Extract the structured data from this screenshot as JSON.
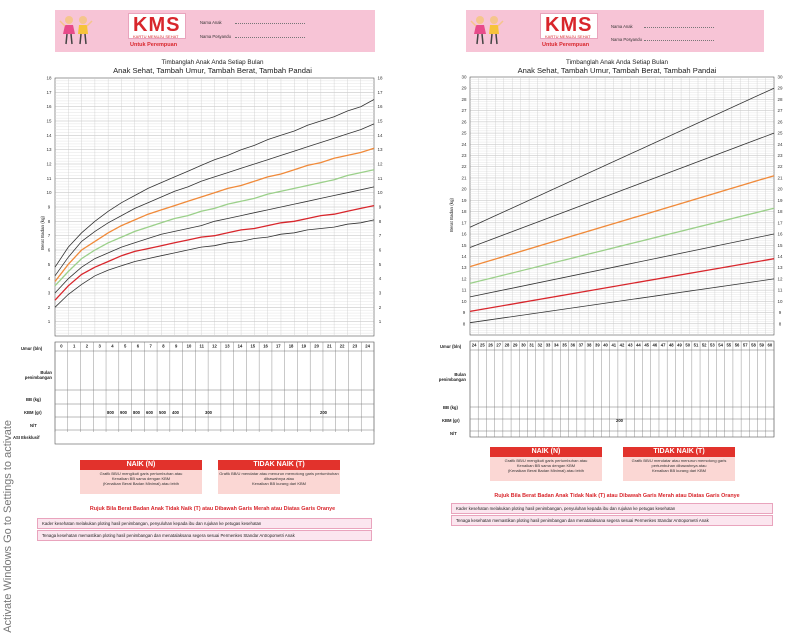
{
  "left_card": {
    "header": {
      "logo": "KMS",
      "logo_sub": "KARTU MENUJU SEHAT",
      "untuk": "Untuk Perempuan",
      "nama_anak": "Nama Anak",
      "nama_posyandu": "Nama Posyandu"
    },
    "title1": "Timbanglah Anak Anda Setiap Bulan",
    "title2": "Anak Sehat, Tambah Umur, Tambah Berat, Tambah Pandai",
    "ylabel": "Berat Badan (kg)",
    "table": {
      "umur": "Umur (bln)",
      "bulan": "Bulan penimbangan",
      "bb": "BB (kg)",
      "kbm": "KBM (gr)",
      "nt": "N/T",
      "asi": "ASI Eksklusif",
      "kbm_values": [
        "800",
        "900",
        "800",
        "600",
        "500",
        "400",
        "300",
        "200"
      ]
    },
    "naik_title": "NAIK (N)",
    "naik_text1": "Grafik BB/U mengikuti garis pertumbuhan atau",
    "naik_text2": "Kenaikan BB sama dengan KBM",
    "naik_text3": "(Kenaikan Berat Badan Minimal) atau lebih",
    "tidak_title": "TIDAK NAIK (T)",
    "tidak_text1": "Grafik BB/U mendatar atau menurun memotong garis pertumbuhan dibawahnya atau",
    "tidak_text2": "Kenaikan BB kurang dari KBM",
    "rujuk": "Rujuk Bila Berat Badan Anak Tidak Naik (T) atau Dibawah Garis Merah atau Diatas Garis Oranye",
    "note1": "Kader kesehatan melakukan ploting hasil penimbangan, penyuluhan kepada ibu dan rujukan ke petugas kesehatan",
    "note2": "Tenaga kesehatan memastikan ploting hasil penimbangan dan menatalaksana segera sesuai Permenkes Standar Antropometri Anak"
  },
  "right_card": {
    "header": {
      "logo": "KMS",
      "logo_sub": "KARTU MENUJU SEHAT",
      "untuk": "Untuk Perempuan",
      "nama_anak": "Nama Anak",
      "nama_posyandu": "Nama Posyandu"
    },
    "title1": "Timbanglah Anak Anda Setiap Bulan",
    "title2": "Anak Sehat, Tambah Umur, Tambah Berat, Tambah Pandai",
    "ylabel": "Berat Badan (kg)",
    "table": {
      "umur": "Umur (bln)",
      "bulan": "Bulan penimbangan",
      "bb": "BB (kg)",
      "kbm": "KBM (gr)",
      "nt": "N/T",
      "kbm_value": "200"
    },
    "naik_title": "NAIK (N)",
    "naik_text1": "Grafik BB/U mengikuti garis pertumbuhan atau",
    "naik_text2": "Kenaikan BB sama dengan KBM",
    "naik_text3": "(Kenaikan Berat Badan Minimal) atau lebih",
    "tidak_title": "TIDAK NAIK (T)",
    "tidak_text1": "Grafik BB/U mendatar atau menurun memotong garis pertumbuhan dibawahnya atau",
    "tidak_text2": "Kenaikan BB kurang dari KBM",
    "rujuk": "Rujuk Bila Berat Badan Anak Tidak Naik (T) atau Dibawah Garis Merah atau Diatas Garis Oranye",
    "note1": "Kader kesehatan melakukan ploting hasil penimbangan, penyuluhan kepada ibu dan rujukan ke petugas kesehatan",
    "note2": "Tenaga kesehatan memastikan ploting hasil penimbangan dan menatalaksana segera sesuai Permenkes Standar Antropometri Anak"
  },
  "watermark": {
    "line1": "Activate Windows",
    "line2": "Go to Settings to activate"
  },
  "colors": {
    "pink": "#f7c4d6",
    "red": "#d8262c",
    "orange": "#f08a3a",
    "green": "#9bd08a"
  },
  "chart_data": [
    {
      "type": "line",
      "title": "Timbanglah Anak Anda Setiap Bulan",
      "ylabel": "Berat Badan (kg)",
      "xlabel": "Umur (bln)",
      "x": [
        0,
        1,
        2,
        3,
        4,
        5,
        6,
        7,
        8,
        9,
        10,
        11,
        12,
        13,
        14,
        15,
        16,
        17,
        18,
        19,
        20,
        21,
        22,
        23,
        24
      ],
      "xlim": [
        0,
        24
      ],
      "ylim": [
        0,
        18
      ],
      "yticks": [
        1,
        2,
        3,
        4,
        5,
        6,
        7,
        8,
        9,
        10,
        11,
        12,
        13,
        14,
        15,
        16,
        17,
        18
      ],
      "series": [
        {
          "color": "#333333",
          "values": [
            4.8,
            6.2,
            7.2,
            8.0,
            8.7,
            9.3,
            9.8,
            10.3,
            10.7,
            11.1,
            11.5,
            11.9,
            12.3,
            12.6,
            13.0,
            13.3,
            13.7,
            14.0,
            14.3,
            14.7,
            15.0,
            15.3,
            15.7,
            16.0,
            16.5
          ]
        },
        {
          "color": "#333333",
          "values": [
            4.2,
            5.5,
            6.6,
            7.3,
            7.9,
            8.4,
            8.9,
            9.3,
            9.7,
            10.1,
            10.4,
            10.8,
            11.1,
            11.4,
            11.7,
            12.0,
            12.3,
            12.6,
            12.9,
            13.2,
            13.5,
            13.8,
            14.1,
            14.4,
            14.8
          ]
        },
        {
          "color": "#f08a3a",
          "values": [
            3.8,
            5.0,
            6.0,
            6.6,
            7.2,
            7.7,
            8.1,
            8.5,
            8.8,
            9.1,
            9.4,
            9.7,
            10.0,
            10.3,
            10.5,
            10.8,
            11.1,
            11.3,
            11.6,
            11.9,
            12.1,
            12.4,
            12.6,
            12.8,
            13.1
          ]
        },
        {
          "color": "#9bd08a",
          "values": [
            3.5,
            4.5,
            5.4,
            6.0,
            6.5,
            6.9,
            7.3,
            7.6,
            7.9,
            8.2,
            8.4,
            8.7,
            8.9,
            9.2,
            9.4,
            9.6,
            9.9,
            10.1,
            10.3,
            10.5,
            10.7,
            10.9,
            11.2,
            11.4,
            11.6
          ]
        },
        {
          "color": "#333333",
          "values": [
            3.0,
            4.0,
            4.8,
            5.4,
            5.8,
            6.2,
            6.5,
            6.8,
            7.1,
            7.3,
            7.5,
            7.7,
            8.0,
            8.2,
            8.4,
            8.6,
            8.8,
            9.0,
            9.2,
            9.4,
            9.6,
            9.8,
            10.0,
            10.2,
            10.4
          ]
        },
        {
          "color": "#d8262c",
          "values": [
            2.5,
            3.5,
            4.3,
            4.8,
            5.2,
            5.6,
            5.9,
            6.1,
            6.3,
            6.5,
            6.7,
            6.9,
            7.0,
            7.2,
            7.4,
            7.5,
            7.7,
            7.9,
            8.0,
            8.2,
            8.4,
            8.5,
            8.7,
            8.9,
            9.1
          ]
        },
        {
          "color": "#333333",
          "values": [
            2.0,
            2.9,
            3.6,
            4.2,
            4.6,
            4.9,
            5.2,
            5.4,
            5.6,
            5.8,
            6.0,
            6.2,
            6.3,
            6.5,
            6.6,
            6.8,
            6.9,
            7.1,
            7.2,
            7.4,
            7.5,
            7.6,
            7.8,
            7.9,
            8.1
          ]
        }
      ]
    },
    {
      "type": "line",
      "title": "Timbanglah Anak Anda Setiap Bulan",
      "ylabel": "Berat Badan (kg)",
      "xlabel": "Umur (bln)",
      "x": [
        24,
        60
      ],
      "xlim": [
        24,
        60
      ],
      "ylim": [
        7,
        30
      ],
      "yticks": [
        8,
        9,
        10,
        11,
        12,
        13,
        14,
        15,
        16,
        17,
        18,
        19,
        20,
        21,
        22,
        23,
        24,
        25,
        26,
        27,
        28,
        29,
        30
      ],
      "series": [
        {
          "color": "#333333",
          "values": [
            16.6,
            29.0
          ]
        },
        {
          "color": "#333333",
          "values": [
            14.8,
            25.0
          ]
        },
        {
          "color": "#f08a3a",
          "values": [
            13.1,
            21.2
          ]
        },
        {
          "color": "#9bd08a",
          "values": [
            11.6,
            18.3
          ]
        },
        {
          "color": "#333333",
          "values": [
            10.4,
            16.0
          ]
        },
        {
          "color": "#d8262c",
          "values": [
            9.1,
            13.8
          ]
        },
        {
          "color": "#333333",
          "values": [
            8.1,
            12.0
          ]
        }
      ]
    }
  ]
}
